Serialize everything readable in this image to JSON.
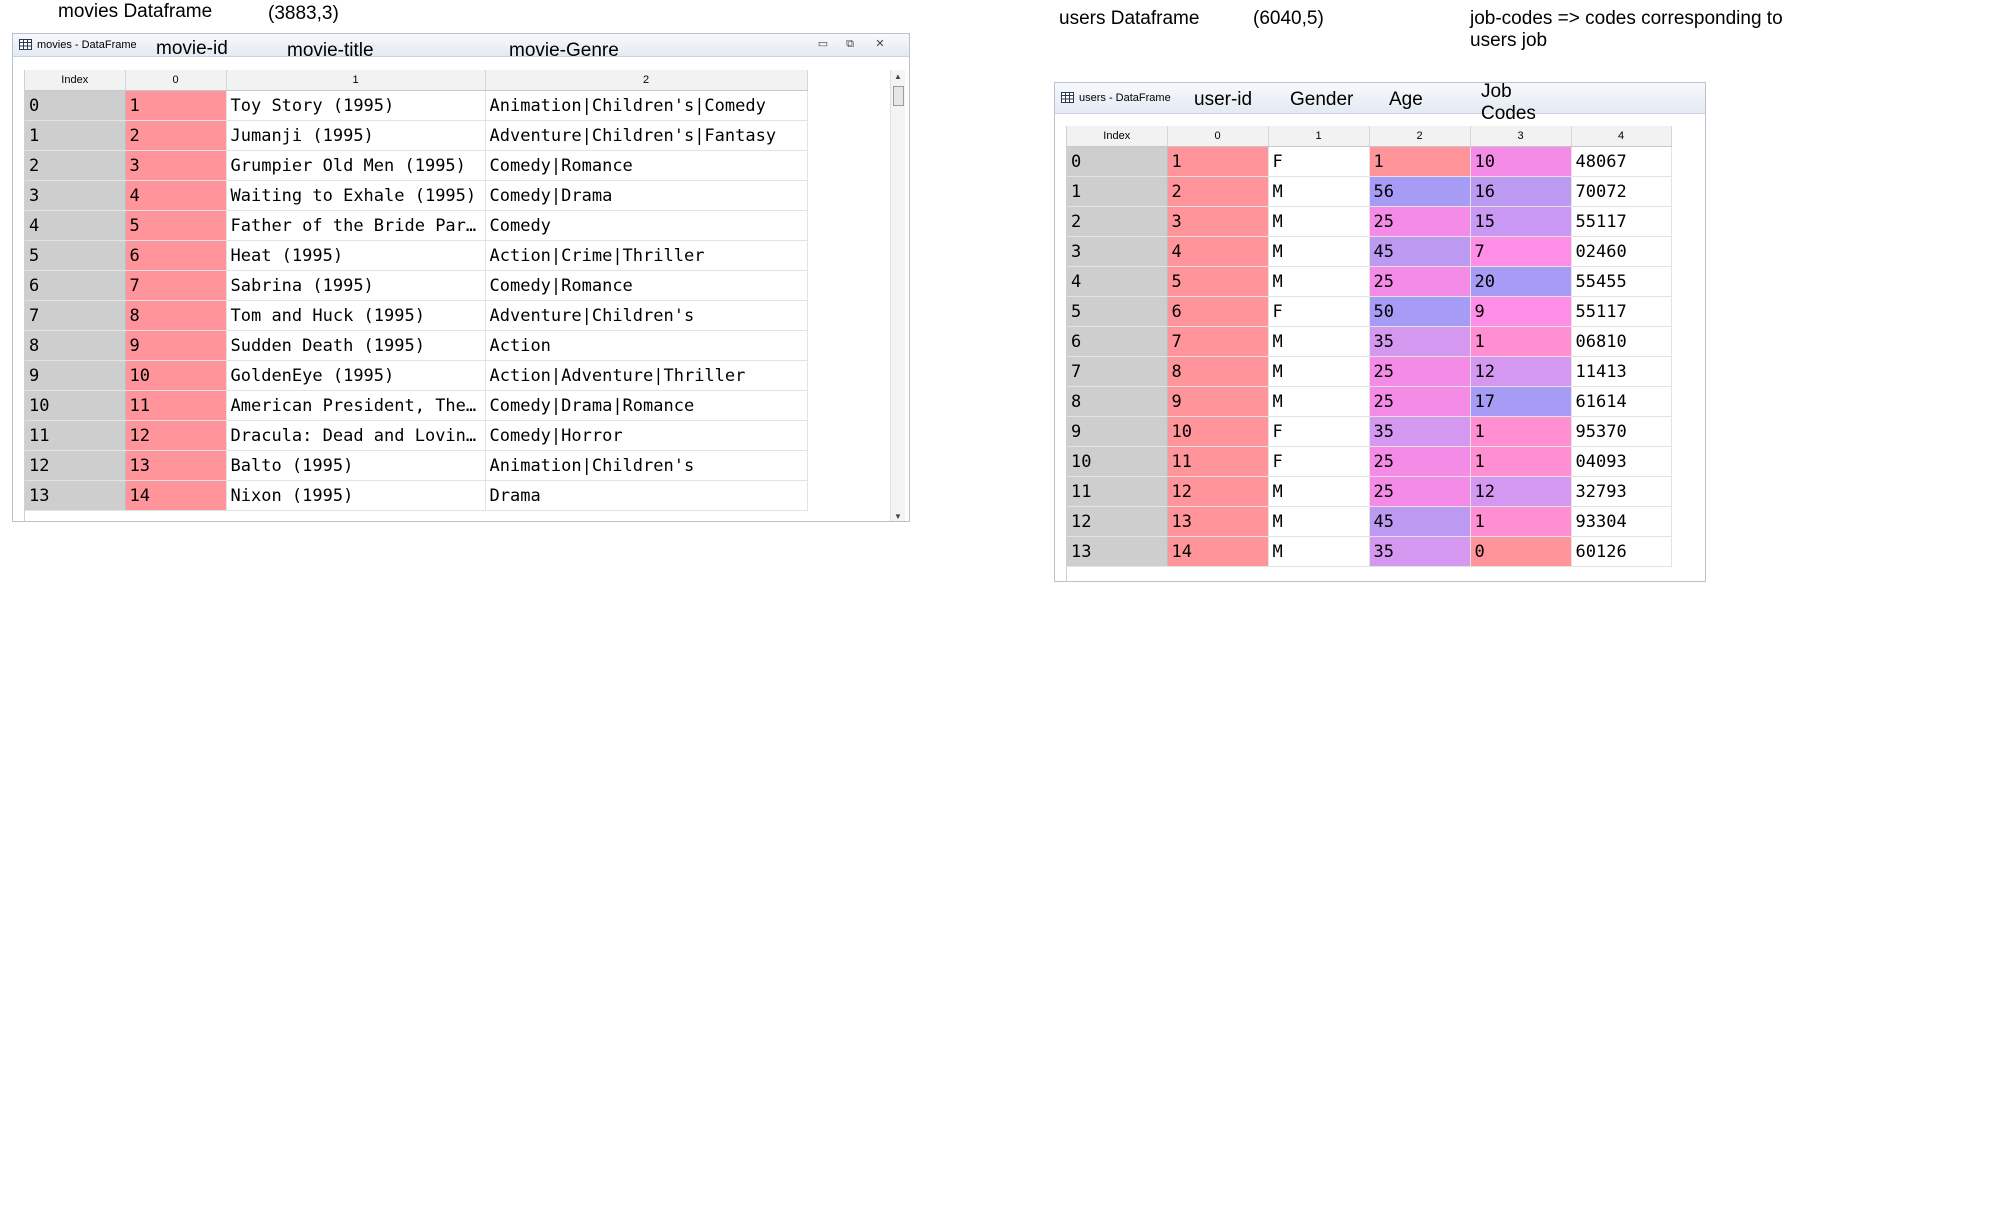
{
  "annotations": {
    "movies_df_label": "movies Dataframe",
    "movies_shape": "(3883,3)",
    "users_df_label": "users Dataframe",
    "users_shape": "(6040,5)",
    "job_codes_note": "job-codes => codes corresponding to users job"
  },
  "movies_window": {
    "title": "movies - DataFrame",
    "col_labels": [
      "movie-id",
      "movie-title",
      "movie-Genre"
    ],
    "headers": [
      "Index",
      "0",
      "1",
      "2"
    ],
    "rows": [
      [
        "0",
        "1",
        "Toy Story (1995)",
        "Animation|Children's|Comedy"
      ],
      [
        "1",
        "2",
        "Jumanji (1995)",
        "Adventure|Children's|Fantasy"
      ],
      [
        "2",
        "3",
        "Grumpier Old Men (1995)",
        "Comedy|Romance"
      ],
      [
        "3",
        "4",
        "Waiting to Exhale (1995)",
        "Comedy|Drama"
      ],
      [
        "4",
        "5",
        "Father of the Bride Par…",
        "Comedy"
      ],
      [
        "5",
        "6",
        "Heat (1995)",
        "Action|Crime|Thriller"
      ],
      [
        "6",
        "7",
        "Sabrina (1995)",
        "Comedy|Romance"
      ],
      [
        "7",
        "8",
        "Tom and Huck (1995)",
        "Adventure|Children's"
      ],
      [
        "8",
        "9",
        "Sudden Death (1995)",
        "Action"
      ],
      [
        "9",
        "10",
        "GoldenEye (1995)",
        "Action|Adventure|Thriller"
      ],
      [
        "10",
        "11",
        "American President, The…",
        "Comedy|Drama|Romance"
      ],
      [
        "11",
        "12",
        "Dracula: Dead and Lovin…",
        "Comedy|Horror"
      ],
      [
        "12",
        "13",
        "Balto (1995)",
        "Animation|Children's"
      ],
      [
        "13",
        "14",
        "Nixon (1995)",
        "Drama"
      ]
    ]
  },
  "users_window": {
    "title": "users - DataFrame",
    "col_labels": [
      "user-id",
      "Gender",
      "Age",
      "Job Codes"
    ],
    "headers": [
      "Index",
      "0",
      "1",
      "2",
      "3",
      "4"
    ],
    "rows": [
      [
        "0",
        "1",
        "F",
        "1",
        "10",
        "48067"
      ],
      [
        "1",
        "2",
        "M",
        "56",
        "16",
        "70072"
      ],
      [
        "2",
        "3",
        "M",
        "25",
        "15",
        "55117"
      ],
      [
        "3",
        "4",
        "M",
        "45",
        "7",
        "02460"
      ],
      [
        "4",
        "5",
        "M",
        "25",
        "20",
        "55455"
      ],
      [
        "5",
        "6",
        "F",
        "50",
        "9",
        "55117"
      ],
      [
        "6",
        "7",
        "M",
        "35",
        "1",
        "06810"
      ],
      [
        "7",
        "8",
        "M",
        "25",
        "12",
        "11413"
      ],
      [
        "8",
        "9",
        "M",
        "25",
        "17",
        "61614"
      ],
      [
        "9",
        "10",
        "F",
        "35",
        "1",
        "95370"
      ],
      [
        "10",
        "11",
        "F",
        "25",
        "1",
        "04093"
      ],
      [
        "11",
        "12",
        "M",
        "25",
        "12",
        "32793"
      ],
      [
        "12",
        "13",
        "M",
        "45",
        "1",
        "93304"
      ],
      [
        "13",
        "14",
        "M",
        "35",
        "0",
        "60126"
      ]
    ]
  },
  "colors": {
    "id_cell": "#ff959a",
    "index_cell": "#cecece",
    "age_by_value": {
      "1": "#ff959a",
      "25": "#f48be6",
      "35": "#d598f0",
      "45": "#bc9af2",
      "50": "#a69cf5",
      "56": "#a69cf5"
    },
    "job_by_value": {
      "0": "#ff959a",
      "1": "#ff8fd2",
      "7": "#ff8fe6",
      "9": "#ff8fe6",
      "10": "#f48be6",
      "12": "#d598f0",
      "15": "#c998f2",
      "16": "#bc9af2",
      "17": "#a69cf5",
      "20": "#a69cf5"
    }
  }
}
